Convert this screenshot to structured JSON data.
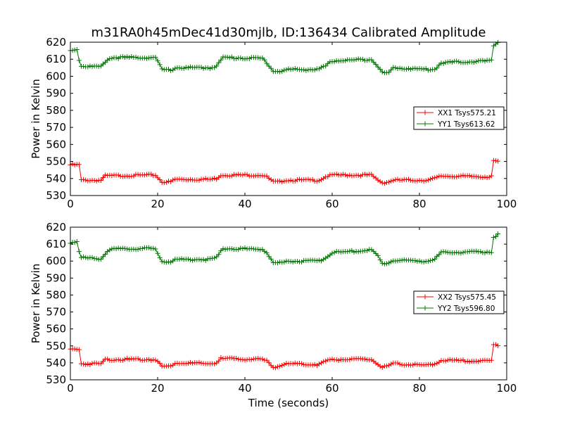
{
  "chart_data": [
    {
      "type": "line",
      "title": "m31RA0h45mDec41d30mjlb, ID:136434 Calibrated Amplitude",
      "xlabel": "",
      "ylabel": "Power in Kelvin",
      "xlim": [
        0,
        100
      ],
      "ylim": [
        530,
        620
      ],
      "xticks": [
        "0",
        "20",
        "40",
        "60",
        "80",
        "100"
      ],
      "yticks": [
        "530",
        "540",
        "550",
        "560",
        "570",
        "580",
        "590",
        "600",
        "610",
        "620"
      ],
      "grid": false,
      "legend_position": "center-right",
      "x_end": 98,
      "series": [
        {
          "name": "XX1 Tsys575.21",
          "color": "#ff0000",
          "marker": "+",
          "points": [
            [
              0,
              548
            ],
            [
              2,
              548
            ],
            [
              2.4,
              539
            ],
            [
              7,
              539
            ],
            [
              8,
              541.5
            ],
            [
              18,
              542
            ],
            [
              19.5,
              542
            ],
            [
              21,
              538
            ],
            [
              23,
              538
            ],
            [
              24,
              539.5
            ],
            [
              32,
              539.5
            ],
            [
              33.5,
              540
            ],
            [
              34.5,
              542
            ],
            [
              44,
              542
            ],
            [
              45,
              541
            ],
            [
              46.5,
              538
            ],
            [
              48,
              538
            ],
            [
              49,
              539
            ],
            [
              57,
              539
            ],
            [
              58.5,
              541
            ],
            [
              60,
              542
            ],
            [
              69,
              542
            ],
            [
              70,
              540
            ],
            [
              71.5,
              537.5
            ],
            [
              73,
              538
            ],
            [
              74,
              539
            ],
            [
              82,
              539
            ],
            [
              83.5,
              540
            ],
            [
              85,
              541.5
            ],
            [
              96,
              541
            ],
            [
              96.5,
              541.5
            ],
            [
              97,
              550
            ],
            [
              98,
              550
            ]
          ]
        },
        {
          "name": "YY1 Tsys613.62",
          "color": "#007700",
          "marker": "+",
          "points": [
            [
              0,
              615
            ],
            [
              1.5,
              616
            ],
            [
              2.3,
              606
            ],
            [
              7,
              605.5
            ],
            [
              8.5,
              610
            ],
            [
              10,
              611
            ],
            [
              18,
              611
            ],
            [
              19.5,
              611
            ],
            [
              21,
              604
            ],
            [
              23,
              603.5
            ],
            [
              24,
              605
            ],
            [
              32,
              605
            ],
            [
              33.5,
              606
            ],
            [
              35,
              611
            ],
            [
              44,
              610.5
            ],
            [
              45,
              608
            ],
            [
              46.5,
              603
            ],
            [
              48.5,
              603
            ],
            [
              50,
              604
            ],
            [
              57,
              604
            ],
            [
              58.5,
              606
            ],
            [
              60,
              609
            ],
            [
              69,
              610
            ],
            [
              70.5,
              606
            ],
            [
              71.5,
              602
            ],
            [
              73,
              602
            ],
            [
              74,
              605
            ],
            [
              82,
              604
            ],
            [
              83.5,
              604
            ],
            [
              85,
              608
            ],
            [
              96,
              609
            ],
            [
              96.5,
              609
            ],
            [
              97,
              618
            ],
            [
              98,
              620
            ]
          ]
        }
      ]
    },
    {
      "type": "line",
      "title": "",
      "xlabel": "Time (seconds)",
      "ylabel": "Power in Kelvin",
      "xlim": [
        0,
        100
      ],
      "ylim": [
        530,
        620
      ],
      "xticks": [
        "0",
        "20",
        "40",
        "60",
        "80",
        "100"
      ],
      "yticks": [
        "530",
        "540",
        "550",
        "560",
        "570",
        "580",
        "590",
        "600",
        "610",
        "620"
      ],
      "grid": false,
      "legend_position": "center-right",
      "x_end": 98,
      "series": [
        {
          "name": "XX2 Tsys575.45",
          "color": "#ff0000",
          "marker": "+",
          "points": [
            [
              0,
              548
            ],
            [
              2,
              548
            ],
            [
              2.4,
              539.5
            ],
            [
              7,
              539.5
            ],
            [
              8,
              542
            ],
            [
              18,
              542
            ],
            [
              19.5,
              542
            ],
            [
              21,
              538
            ],
            [
              23,
              538
            ],
            [
              24,
              540
            ],
            [
              32,
              539.5
            ],
            [
              33.5,
              540
            ],
            [
              34.5,
              542.5
            ],
            [
              44,
              542
            ],
            [
              45,
              541
            ],
            [
              46.5,
              537.5
            ],
            [
              48,
              538
            ],
            [
              49,
              539.5
            ],
            [
              57,
              539
            ],
            [
              58.5,
              541
            ],
            [
              60,
              542
            ],
            [
              69,
              542
            ],
            [
              70,
              540
            ],
            [
              71.5,
              537.5
            ],
            [
              73,
              538
            ],
            [
              74,
              539.5
            ],
            [
              82,
              538.5
            ],
            [
              83.5,
              539.5
            ],
            [
              85,
              541.5
            ],
            [
              96,
              541
            ],
            [
              96.5,
              541.5
            ],
            [
              97,
              550.5
            ],
            [
              98,
              550.5
            ]
          ]
        },
        {
          "name": "YY2 Tsys596.80",
          "color": "#007700",
          "marker": "+",
          "points": [
            [
              0,
              611
            ],
            [
              1.5,
              611.5
            ],
            [
              2.3,
              602
            ],
            [
              7,
              601.5
            ],
            [
              8.5,
              606
            ],
            [
              10,
              607
            ],
            [
              18,
              607.5
            ],
            [
              19.5,
              607
            ],
            [
              21,
              600
            ],
            [
              23,
              599.5
            ],
            [
              24,
              601
            ],
            [
              32,
              601
            ],
            [
              33.5,
              602
            ],
            [
              35,
              607.5
            ],
            [
              44,
              607
            ],
            [
              45,
              605
            ],
            [
              46.5,
              599
            ],
            [
              48.5,
              599
            ],
            [
              50,
              600
            ],
            [
              57,
              600
            ],
            [
              58.5,
              602
            ],
            [
              60,
              605
            ],
            [
              69,
              606.5
            ],
            [
              70.5,
              603
            ],
            [
              71.5,
              598.5
            ],
            [
              73,
              599
            ],
            [
              74,
              600.5
            ],
            [
              82,
              600
            ],
            [
              83.5,
              601
            ],
            [
              85,
              605
            ],
            [
              96,
              605.5
            ],
            [
              96.5,
              605.5
            ],
            [
              97,
              614
            ],
            [
              98,
              615.5
            ]
          ]
        }
      ]
    }
  ]
}
